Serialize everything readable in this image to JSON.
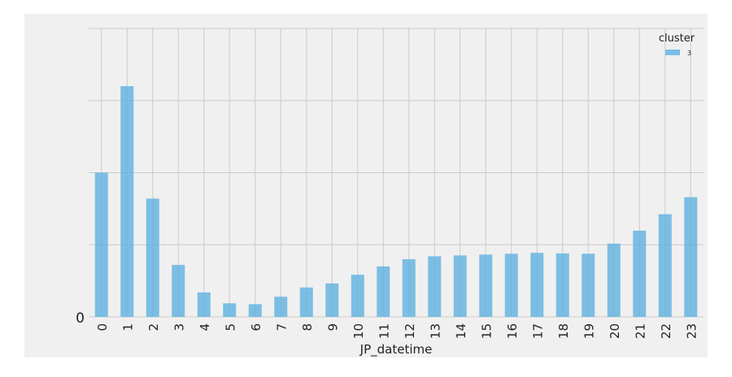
{
  "chart_data": {
    "type": "bar",
    "xlabel": "JP_datetime",
    "ylabel": "",
    "y_tick_labels": [
      "0"
    ],
    "legend": {
      "title": "cluster",
      "entries": [
        "3"
      ],
      "placement": "top-right"
    },
    "grid": true,
    "ylim": [
      0,
      100
    ],
    "categories": [
      "0",
      "1",
      "2",
      "3",
      "4",
      "5",
      "6",
      "7",
      "8",
      "9",
      "10",
      "11",
      "12",
      "13",
      "14",
      "15",
      "16",
      "17",
      "18",
      "19",
      "20",
      "21",
      "22",
      "23"
    ],
    "series": [
      {
        "name": "3",
        "values": [
          50,
          80,
          41,
          18,
          8.5,
          4.7,
          4.4,
          7,
          10.2,
          11.6,
          14.6,
          17.5,
          20,
          21,
          21.3,
          21.6,
          21.9,
          22.2,
          22,
          21.9,
          25.4,
          29.9,
          35.6,
          41.5
        ]
      }
    ],
    "colors": {
      "bar": "#56aedf",
      "background": "#f0f0f0",
      "grid": "#cbcbcb",
      "text": "#222222"
    }
  }
}
